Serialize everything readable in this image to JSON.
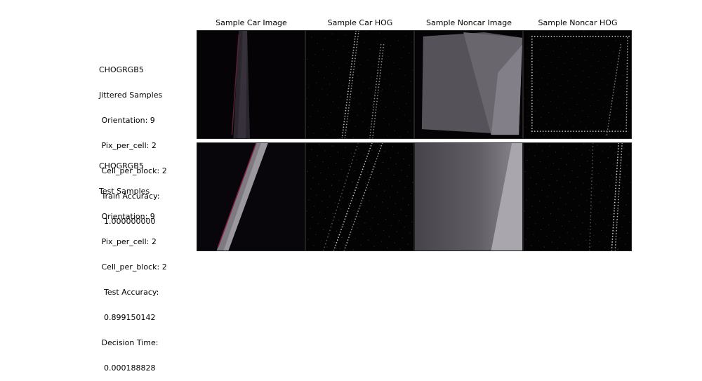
{
  "columns": [
    {
      "title": "Sample Car Image"
    },
    {
      "title": "Sample Car HOG"
    },
    {
      "title": "Sample Noncar Image"
    },
    {
      "title": "Sample Noncar HOG"
    }
  ],
  "rows": [
    {
      "lines": [
        "CHOGRGB5",
        "Jittered Samples",
        " Orientation: 9",
        " Pix_per_cell: 2",
        " Cell_per_block: 2",
        " Train Accuracy:",
        "  1.000000000"
      ]
    },
    {
      "lines": [
        "CHOGRGB5",
        "Test Samples",
        " Orientation: 9",
        " Pix_per_cell: 2",
        " Cell_per_block: 2",
        "  Test Accuracy:",
        "  0.899150142",
        " Decision Time:",
        "  0.000188828"
      ]
    }
  ]
}
